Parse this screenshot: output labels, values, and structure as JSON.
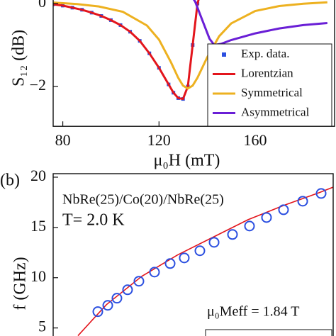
{
  "chart_data": [
    {
      "type": "line",
      "x_label": "μ₀H (mT)",
      "y_label": "S₁₂ (dB)",
      "xlim": [
        76,
        193
      ],
      "ylim": [
        -2.96,
        0.085
      ],
      "xticks": [
        80,
        120,
        160
      ],
      "yticks": [
        {
          "value": -2,
          "label": "−2"
        },
        0
      ],
      "legend": "lower right",
      "series": [
        {
          "name": "Exp. data.",
          "color": "#2b4fe0",
          "marker": "square",
          "x": [
            76,
            80,
            84,
            88,
            92,
            96,
            100,
            104,
            108,
            112,
            116,
            120,
            124,
            126,
            128,
            130,
            132,
            134,
            136
          ],
          "values": [
            -0.02,
            -0.05,
            -0.1,
            -0.15,
            -0.22,
            -0.3,
            -0.4,
            -0.52,
            -0.68,
            -0.9,
            -1.2,
            -1.55,
            -1.95,
            -2.15,
            -2.28,
            -2.3,
            -2.0,
            -1.0,
            0.0
          ]
        },
        {
          "name": "Lorentzian",
          "color": "#e3151c",
          "x": [
            76,
            80,
            84,
            88,
            92,
            96,
            100,
            104,
            108,
            112,
            116,
            120,
            124,
            126,
            128,
            130,
            132,
            134,
            136,
            137
          ],
          "values": [
            -0.02,
            -0.05,
            -0.1,
            -0.15,
            -0.22,
            -0.3,
            -0.4,
            -0.52,
            -0.68,
            -0.9,
            -1.2,
            -1.55,
            -1.95,
            -2.15,
            -2.28,
            -2.3,
            -2.0,
            -1.0,
            0.0,
            0.2
          ]
        },
        {
          "name": "Symmetrical",
          "color": "#edb120",
          "x": [
            76,
            86,
            95,
            105,
            115,
            120,
            125,
            128,
            130,
            132,
            134,
            136,
            140,
            145,
            150,
            160,
            170,
            180,
            190
          ],
          "values": [
            0.024,
            -0.014,
            -0.07,
            -0.2,
            -0.53,
            -0.87,
            -1.42,
            -1.79,
            -1.98,
            -2.05,
            -1.98,
            -1.79,
            -1.3,
            -0.79,
            -0.48,
            -0.18,
            -0.06,
            -0.005,
            0.03
          ]
        },
        {
          "name": "Asymmetrical",
          "color": "#6a1fd6",
          "x": [
            132,
            135,
            138,
            141,
            143,
            146,
            150,
            160,
            170,
            180,
            190
          ],
          "values": [
            0.3,
            0.05,
            -0.4,
            -0.85,
            -1.0,
            -0.97,
            -0.88,
            -0.72,
            -0.6,
            -0.52,
            -0.47
          ]
        }
      ]
    },
    {
      "type": "line",
      "y_label": "f (GHz)",
      "xlim": [
        0,
        400
      ],
      "ylim": [
        4.2,
        20.35
      ],
      "yticks": [
        5,
        10,
        15,
        20
      ],
      "annotations": [
        "(b)",
        "NbRe(25)/Co(20)/NbRe(25)",
        "T= 2.0 K",
        "μ₀Meff = 1.84 T"
      ],
      "series": [
        {
          "color": "#e3151c",
          "x": [
            35.4,
            55.7,
            76,
            126.6,
            177.2,
            227.8,
            278.5,
            329.1,
            379.7,
            400
          ],
          "values": [
            4.23,
            5.77,
            7.32,
            10.14,
            12.25,
            14.01,
            15.77,
            17.18,
            18.45,
            19.01
          ]
        },
        {
          "color": "#2b4fe0",
          "marker": "circle",
          "x": [
            63.8,
            78,
            91.1,
            106.3,
            122.5,
            144.8,
            167.1,
            187.3,
            209.6,
            229.9,
            256.2,
            280.5,
            304.8,
            329.1,
            356.5,
            382.8
          ],
          "values": [
            6.62,
            7.25,
            7.96,
            8.8,
            9.65,
            10.56,
            11.41,
            11.97,
            12.68,
            13.52,
            14.3,
            15.14,
            15.99,
            16.76,
            17.61,
            18.38
          ]
        }
      ]
    }
  ]
}
